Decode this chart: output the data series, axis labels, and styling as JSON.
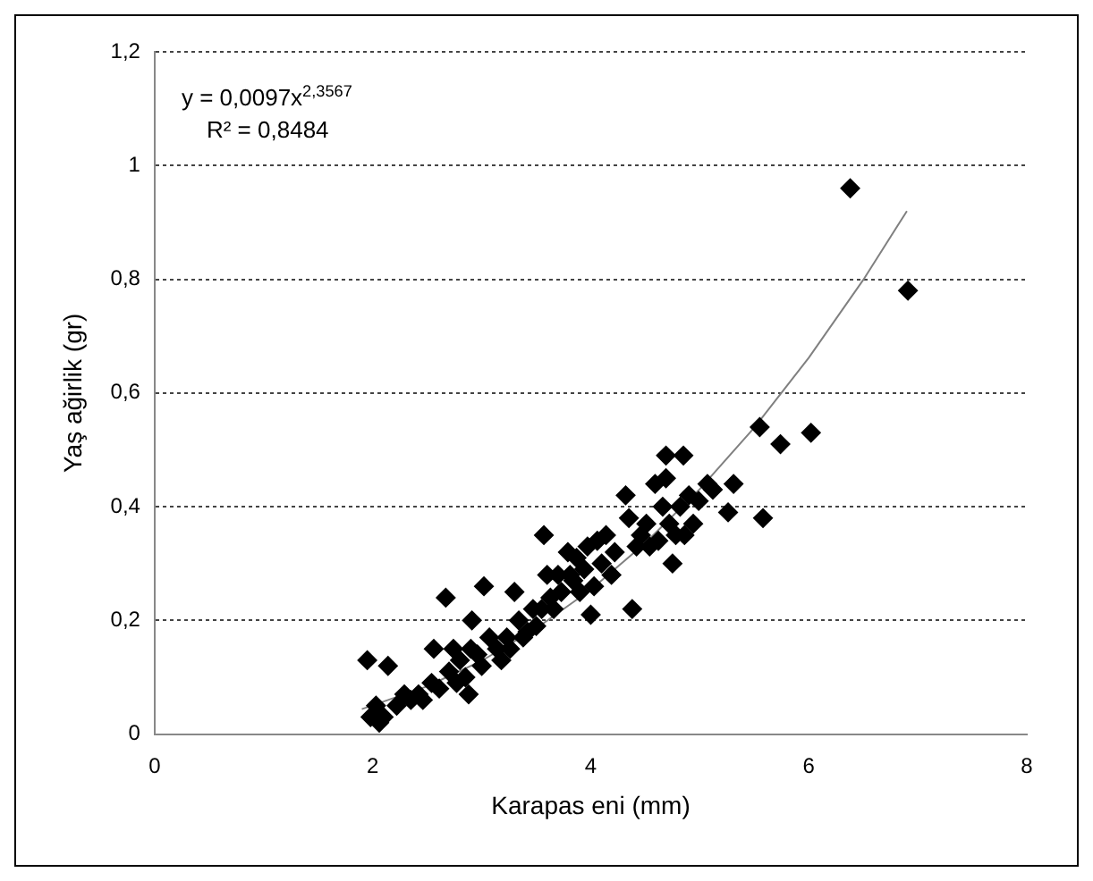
{
  "chart_data": {
    "type": "scatter",
    "xlabel": "Karapas eni (mm)",
    "ylabel": "Yaş ağirlik (gr)",
    "annotations": [
      "y = 0,0097x$^{2,3567}$",
      "R² = 0,8484"
    ],
    "xlim": [
      0,
      8
    ],
    "xticks": [
      0,
      2,
      4,
      6,
      8
    ],
    "ylim": [
      0,
      1.2
    ],
    "yticks": [
      0,
      {
        "value": 0.2,
        "label": "0,2"
      },
      {
        "value": 0.4,
        "label": "0,4"
      },
      {
        "value": 0.6,
        "label": "0,6"
      },
      {
        "value": 0.8,
        "label": "0,8"
      },
      1,
      {
        "value": 1.2,
        "label": "1,2"
      }
    ],
    "grid": "y",
    "legend": false,
    "marker": "diamond",
    "series": [
      {
        "color": "#000000",
        "x": [
          1.95,
          1.98,
          2.03,
          2.06,
          2.14,
          2.1,
          2.22,
          2.29,
          2.35,
          2.42,
          2.46,
          2.54,
          2.61,
          2.56,
          2.67,
          2.7,
          2.74,
          2.77,
          2.8,
          2.85,
          2.88,
          2.91,
          2.9,
          2.96,
          3.0,
          3.02,
          3.07,
          3.14,
          3.18,
          3.23,
          3.26,
          3.3,
          3.34,
          3.38,
          3.42,
          3.47,
          3.5,
          3.55,
          3.57,
          3.6,
          3.63,
          3.66,
          3.7,
          3.73,
          3.79,
          3.81,
          3.84,
          3.87,
          3.9,
          3.94,
          3.97,
          4.0,
          4.03,
          4.06,
          4.1,
          4.14,
          4.19,
          4.22,
          4.32,
          4.35,
          4.38,
          4.42,
          4.46,
          4.51,
          4.54,
          4.59,
          4.62,
          4.66,
          4.69,
          4.69,
          4.72,
          4.75,
          4.78,
          4.82,
          4.85,
          4.86,
          4.9,
          4.94,
          4.99,
          5.07,
          5.12,
          5.26,
          5.31,
          5.55,
          5.58,
          5.74,
          6.02,
          6.38,
          6.91
        ],
        "values": [
          0.13,
          0.03,
          0.05,
          0.02,
          0.12,
          0.03,
          0.05,
          0.07,
          0.06,
          0.07,
          0.06,
          0.09,
          0.08,
          0.15,
          0.24,
          0.11,
          0.15,
          0.09,
          0.13,
          0.1,
          0.07,
          0.2,
          0.15,
          0.14,
          0.12,
          0.26,
          0.17,
          0.15,
          0.13,
          0.17,
          0.15,
          0.25,
          0.2,
          0.17,
          0.18,
          0.22,
          0.19,
          0.22,
          0.35,
          0.28,
          0.24,
          0.22,
          0.28,
          0.25,
          0.32,
          0.28,
          0.27,
          0.31,
          0.25,
          0.29,
          0.33,
          0.21,
          0.26,
          0.34,
          0.3,
          0.35,
          0.28,
          0.32,
          0.42,
          0.38,
          0.22,
          0.33,
          0.35,
          0.37,
          0.33,
          0.44,
          0.34,
          0.4,
          0.45,
          0.49,
          0.37,
          0.3,
          0.35,
          0.4,
          0.49,
          0.35,
          0.42,
          0.37,
          0.41,
          0.44,
          0.43,
          0.39,
          0.44,
          0.54,
          0.38,
          0.51,
          0.53,
          0.96,
          0.78
        ]
      },
      {
        "type": "line",
        "color": "#808080",
        "marker": "none",
        "x": [
          1.9,
          2.5,
          3,
          3.5,
          4,
          4.5,
          5,
          5.5,
          6,
          6.5,
          6.9
        ],
        "values": [
          0.044,
          0.084,
          0.129,
          0.186,
          0.254,
          0.336,
          0.431,
          0.539,
          0.662,
          0.799,
          0.92
        ]
      }
    ]
  }
}
